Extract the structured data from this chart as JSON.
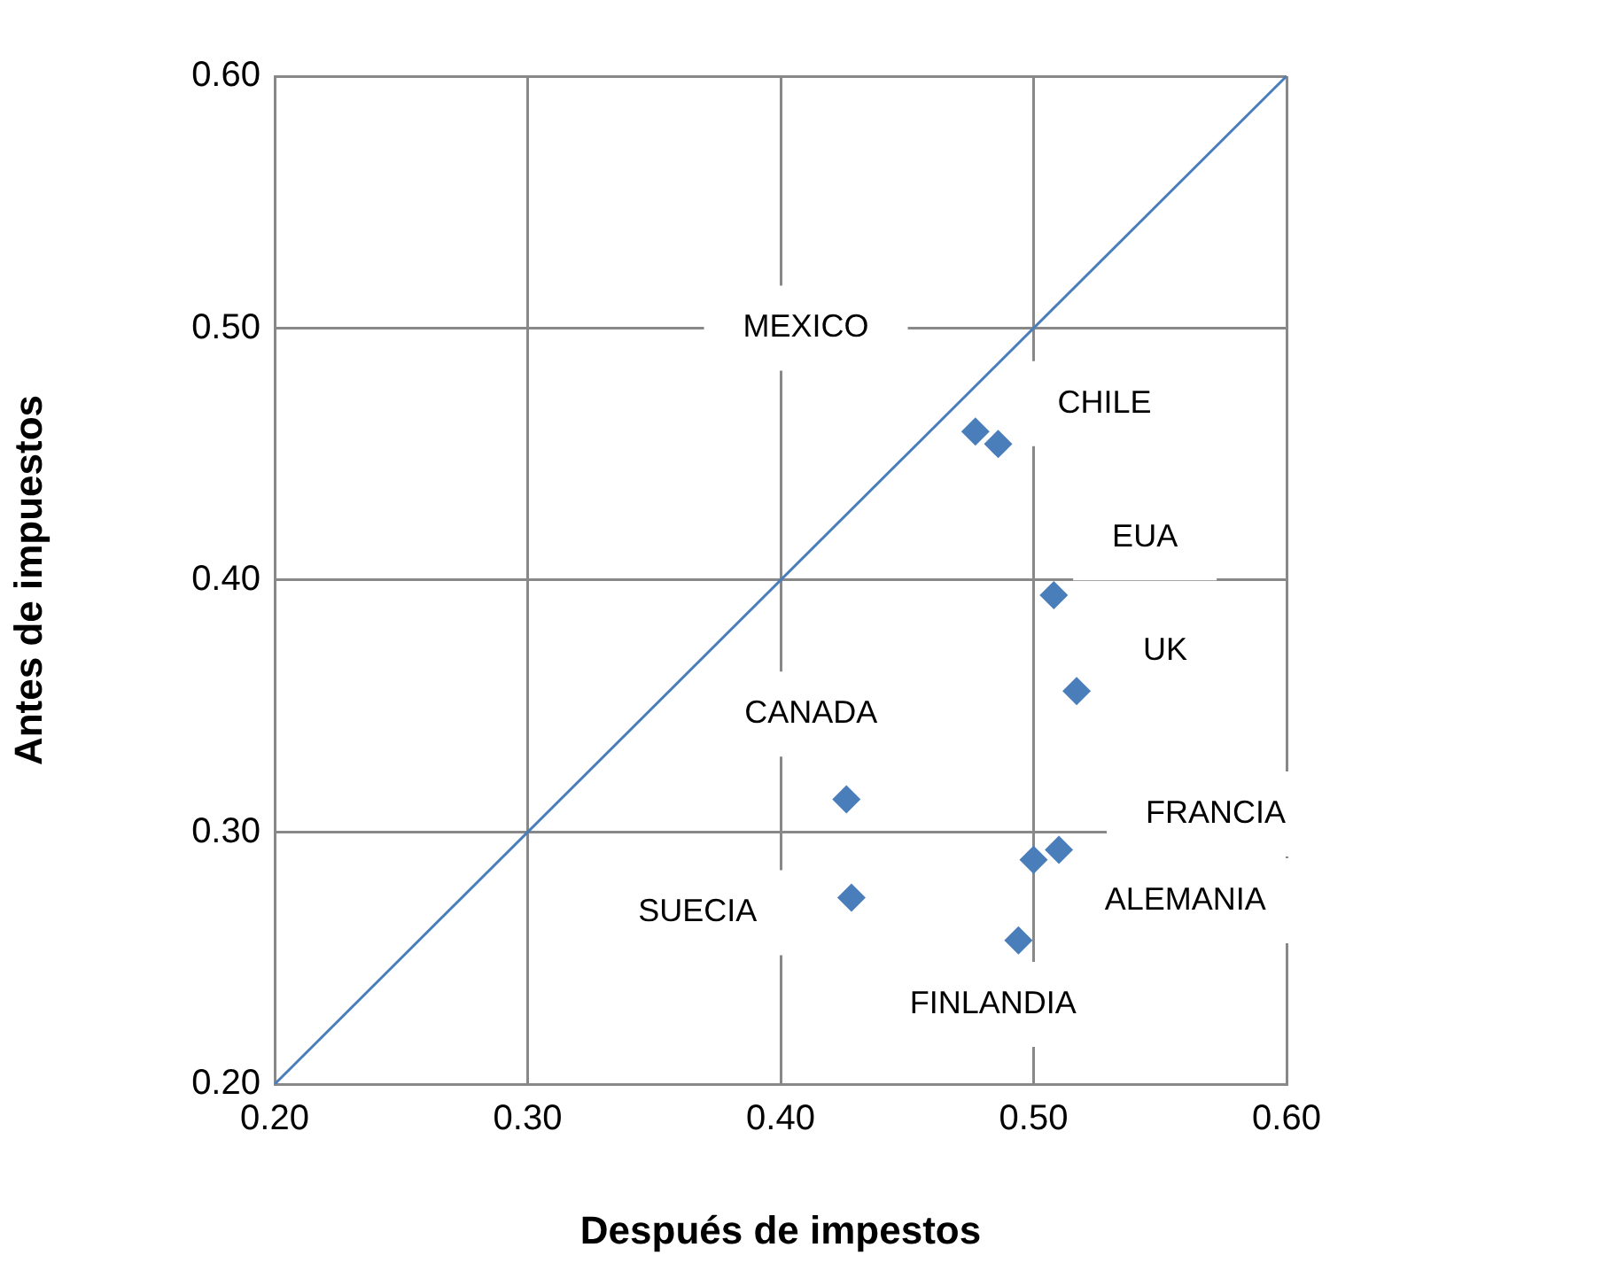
{
  "chart_data": {
    "type": "scatter",
    "xlabel": "Después de impestos",
    "ylabel": "Antes de impuestos",
    "xlim": [
      0.2,
      0.6
    ],
    "ylim": [
      0.2,
      0.6
    ],
    "xticks": [
      {
        "value": 0.2,
        "label": "0.20"
      },
      {
        "value": 0.3,
        "label": "0.30"
      },
      {
        "value": 0.4,
        "label": "0.40"
      },
      {
        "value": 0.5,
        "label": "0.50"
      },
      {
        "value": 0.6,
        "label": "0.60"
      }
    ],
    "yticks": [
      {
        "value": 0.2,
        "label": "0.20"
      },
      {
        "value": 0.3,
        "label": "0.30"
      },
      {
        "value": 0.4,
        "label": "0.40"
      },
      {
        "value": 0.5,
        "label": "0.50"
      },
      {
        "value": 0.6,
        "label": "0.60"
      }
    ],
    "grid": true,
    "legend": false,
    "series": [
      {
        "color": "#4a7ebb",
        "marker": "diamond",
        "x": [
          0.477,
          0.486,
          0.508,
          0.517,
          0.426,
          0.51,
          0.5,
          0.428,
          0.494
        ],
        "values": [
          0.459,
          0.454,
          0.394,
          0.356,
          0.313,
          0.293,
          0.289,
          0.274,
          0.257
        ]
      },
      {
        "type": "line",
        "marker": "none",
        "color": "#4a7ebb",
        "x": [
          0.2,
          0.6
        ],
        "values": [
          0.2,
          0.6
        ]
      }
    ],
    "annotations": [
      "MEXICO",
      "CHILE",
      "EUA",
      "UK",
      "CANADA",
      "FRANCIA",
      "ALEMANIA",
      "SUECIA",
      "FINLANDIA"
    ]
  }
}
